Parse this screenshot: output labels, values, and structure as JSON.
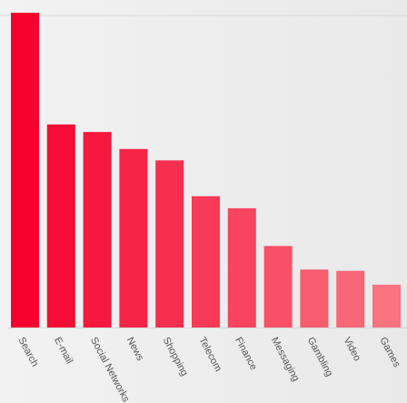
{
  "chart_data": {
    "type": "bar",
    "categories": [
      "Search",
      "E-mail",
      "Social Networks",
      "News",
      "Shopping",
      "Telecom",
      "Finance",
      "Messaging",
      "Gambling",
      "Video",
      "Games"
    ],
    "values": [
      100,
      64.5,
      62.1,
      56.7,
      53.1,
      41.7,
      37.9,
      25.9,
      18.4,
      18.0,
      13.6
    ],
    "ylim": [
      0,
      100
    ],
    "title": "",
    "xlabel": "",
    "ylabel": "",
    "grid": false,
    "legend": "none",
    "colors": {
      "start": "#f5022e",
      "end": "#f8727f",
      "axis_line": "#d8d8d8",
      "tick_text": "#555555"
    }
  }
}
